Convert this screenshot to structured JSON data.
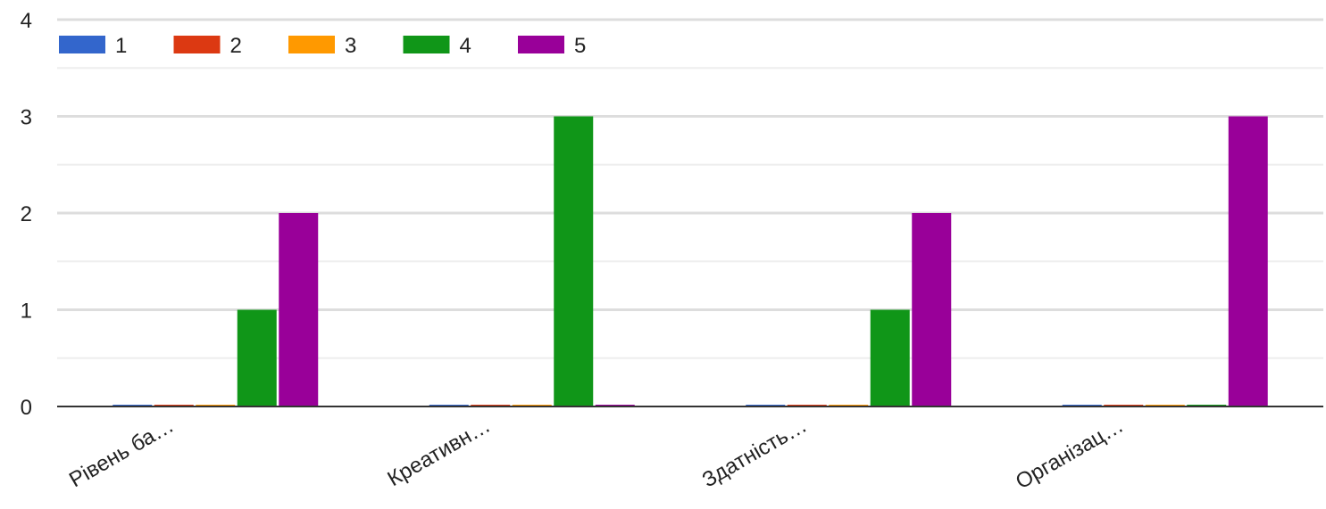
{
  "chart_data": {
    "type": "bar",
    "categories": [
      "Рівень ба…",
      "Креативн…",
      "Здатність…",
      "Організац…"
    ],
    "series": [
      {
        "name": "1",
        "color": "#3366cc",
        "values": [
          0,
          0,
          0,
          0
        ]
      },
      {
        "name": "2",
        "color": "#dc3912",
        "values": [
          0,
          0,
          0,
          0
        ]
      },
      {
        "name": "3",
        "color": "#ff9900",
        "values": [
          0,
          0,
          0,
          0
        ]
      },
      {
        "name": "4",
        "color": "#109618",
        "values": [
          1,
          3,
          1,
          0
        ]
      },
      {
        "name": "5",
        "color": "#990099",
        "values": [
          2,
          0,
          2,
          3
        ]
      }
    ],
    "ylim": [
      0,
      4
    ],
    "yticks": [
      "0",
      "1",
      "2",
      "3",
      "4"
    ],
    "grid": true,
    "minor_grid": true,
    "legend_position": "top-left",
    "title": "",
    "xlabel": "",
    "ylabel": ""
  }
}
